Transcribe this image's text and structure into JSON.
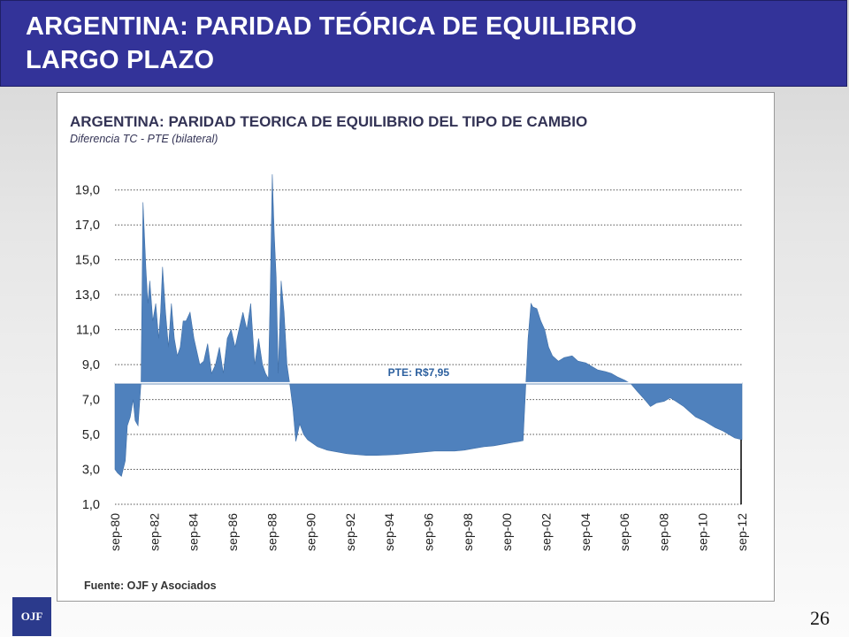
{
  "slide": {
    "title": "ARGENTINA:  PARIDAD TEÓRICA DE EQUILIBRIO\nLARGO PLAZO",
    "page_number": "26",
    "logo_text": "OJF",
    "colors": {
      "title_bar": "#333399",
      "series_fill": "#4f81bd",
      "logo": "#2b3a8c"
    }
  },
  "chart_data": {
    "type": "area",
    "title": "ARGENTINA: PARIDAD TEORICA DE EQUILIBRIO DEL TIPO DE CAMBIO",
    "subtitle": "Diferencia TC - PTE (bilateral)",
    "source": "Fuente: OJF y Asociados",
    "annotation": "PTE: R$7,95",
    "baseline": 7.95,
    "ylim": [
      1,
      20
    ],
    "y_ticks": [
      "19,0",
      "17,0",
      "15,0",
      "13,0",
      "11,0",
      "9,0",
      "7,0",
      "5,0",
      "3,0",
      "1,0"
    ],
    "x_ticks": [
      "sep-80",
      "sep-82",
      "sep-84",
      "sep-86",
      "sep-88",
      "sep-90",
      "sep-92",
      "sep-94",
      "sep-96",
      "sep-98",
      "sep-00",
      "sep-02",
      "sep-04",
      "sep-06",
      "sep-08",
      "sep-10",
      "sep-12"
    ],
    "grid": true,
    "series": [
      {
        "x": [
          1980.67,
          1980.8,
          1981.0,
          1981.2,
          1981.3,
          1981.45,
          1981.6,
          1981.7,
          1981.85,
          1982.0,
          1982.1,
          1982.25,
          1982.35,
          1982.45,
          1982.6,
          1982.75,
          1982.9,
          1983.0,
          1983.1,
          1983.25,
          1983.4,
          1983.55,
          1983.7,
          1983.85,
          1984.0,
          1984.15,
          1984.3,
          1984.5,
          1984.7,
          1984.9,
          1985.0,
          1985.2,
          1985.4,
          1985.6,
          1985.8,
          1986.0,
          1986.2,
          1986.4,
          1986.6,
          1986.8,
          1987.0,
          1987.2,
          1987.4,
          1987.6,
          1987.8,
          1988.0,
          1988.2,
          1988.35,
          1988.5,
          1988.6,
          1988.7,
          1988.8,
          1988.9,
          1989.0,
          1989.15,
          1989.3,
          1989.45,
          1989.6,
          1989.75,
          1989.9,
          1990.1,
          1990.3,
          1990.5,
          1990.75,
          1991.0,
          1991.5,
          1992.0,
          1992.5,
          1993.0,
          1993.5,
          1994.0,
          1994.5,
          1995.0,
          1995.5,
          1996.0,
          1996.5,
          1997.0,
          1997.5,
          1998.0,
          1998.5,
          1999.0,
          1999.5,
          2000.0,
          2000.5,
          2001.0,
          2001.3,
          2001.5,
          2001.75,
          2001.9,
          2002.0,
          2002.2,
          2002.4,
          2002.6,
          2002.8,
          2003.0,
          2003.3,
          2003.6,
          2004.0,
          2004.3,
          2004.7,
          2005.0,
          2005.3,
          2005.7,
          2006.0,
          2006.3,
          2006.7,
          2007.0,
          2007.3,
          2007.7,
          2008.0,
          2008.3,
          2008.7,
          2009.0,
          2009.3,
          2009.7,
          2010.0,
          2010.3,
          2010.7,
          2011.0,
          2011.3,
          2011.7,
          2012.0,
          2012.3,
          2012.67
        ],
        "values": [
          3.0,
          2.8,
          2.6,
          3.5,
          5.5,
          6.0,
          7.0,
          5.8,
          5.5,
          8.0,
          18.3,
          14.5,
          12.5,
          13.8,
          11.5,
          12.5,
          10.5,
          12.0,
          14.6,
          12.0,
          10.0,
          12.5,
          10.5,
          9.5,
          10.0,
          11.5,
          11.5,
          12.0,
          10.5,
          9.5,
          9.0,
          9.2,
          10.2,
          8.5,
          9.0,
          10.0,
          8.5,
          10.5,
          11.0,
          10.0,
          11.0,
          12.0,
          11.0,
          12.5,
          9.0,
          10.5,
          9.0,
          8.5,
          8.2,
          13.5,
          19.9,
          16.5,
          14.0,
          8.5,
          13.8,
          12.0,
          9.0,
          7.8,
          6.5,
          4.6,
          5.6,
          5.0,
          4.7,
          4.5,
          4.3,
          4.1,
          4.0,
          3.9,
          3.85,
          3.8,
          3.8,
          3.82,
          3.85,
          3.9,
          3.95,
          4.0,
          4.05,
          4.05,
          4.05,
          4.1,
          4.2,
          4.3,
          4.35,
          4.45,
          4.55,
          4.6,
          4.65,
          10.5,
          12.5,
          12.3,
          12.2,
          11.5,
          11.0,
          10.0,
          9.5,
          9.2,
          9.4,
          9.5,
          9.2,
          9.1,
          8.9,
          8.7,
          8.6,
          8.5,
          8.3,
          8.1,
          7.9,
          7.5,
          7.0,
          6.6,
          6.8,
          6.9,
          7.1,
          6.9,
          6.6,
          6.3,
          6.0,
          5.8,
          5.6,
          5.4,
          5.2,
          5.0,
          4.8,
          4.7
        ]
      }
    ]
  }
}
